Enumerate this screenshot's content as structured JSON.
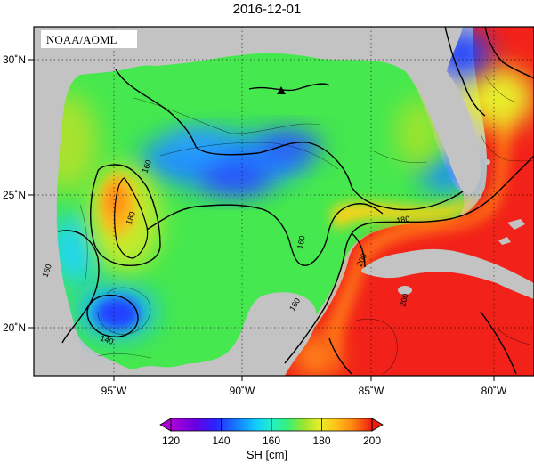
{
  "title": "2016-12-01",
  "logo_text": "NOAA/AOML",
  "axes": {
    "lon_ticks": [
      "95˚W",
      "90˚W",
      "85˚W",
      "80˚W"
    ],
    "lat_ticks": [
      "30˚N",
      "25˚N",
      "20˚N"
    ]
  },
  "contour_labels": [
    {
      "text": "160"
    },
    {
      "text": "180"
    },
    {
      "text": "160"
    },
    {
      "text": "160"
    },
    {
      "text": "140"
    },
    {
      "text": "180"
    },
    {
      "text": "200"
    },
    {
      "text": "200"
    },
    {
      "text": "160"
    }
  ],
  "colorbar": {
    "label": "SH [cm]",
    "ticks": [
      "120",
      "140",
      "160",
      "180",
      "200"
    ],
    "min": 120,
    "max": 200,
    "colors": [
      "#b000d8",
      "#6a00e0",
      "#2a22ff",
      "#1577ff",
      "#11c9ff",
      "#22f0c8",
      "#36f07a",
      "#4ee04a",
      "#9be42e",
      "#e8ee2a",
      "#ffc21a",
      "#ff8a10",
      "#ff4a10",
      "#f01a10"
    ]
  },
  "colors": {
    "land": "#c3c3c3",
    "contour": "#000000",
    "marker": "#000000"
  },
  "marker_icon": "triangle-marker-icon"
}
